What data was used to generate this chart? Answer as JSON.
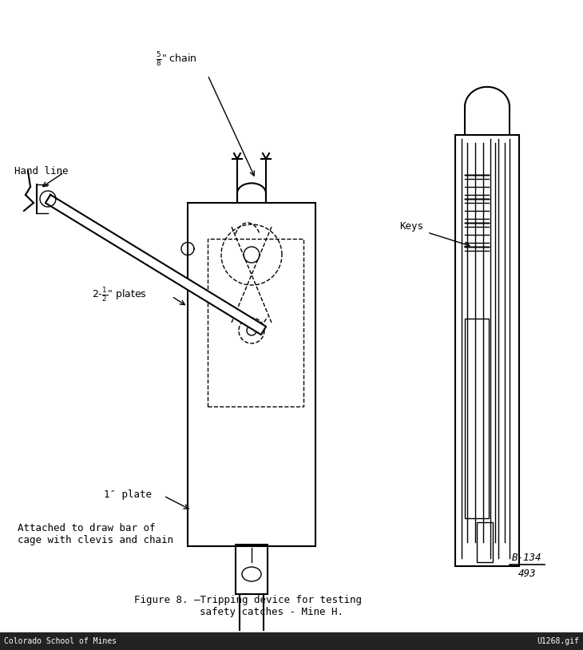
{
  "title": "Figure 8. —Tripping device for testing\n        safety catches - Mine H.",
  "bg_color": "#f0f0f0",
  "footer_left": "Colorado School of Mines",
  "footer_right": "U1268.gif",
  "ref_top": "B-134",
  "ref_bottom": "493",
  "label_chain": "5″ chain\n8",
  "label_handline": "Hand line",
  "label_plates": "2-½″ plates",
  "label_1plate": "1″ plate",
  "label_bottom": "Attached to draw bar of\ncage with clevis and chain",
  "label_keys": "Keys"
}
